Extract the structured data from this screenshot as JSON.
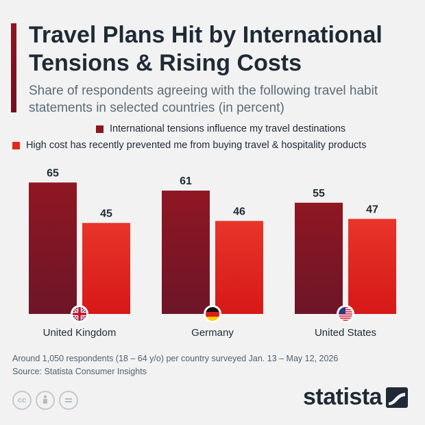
{
  "header": {
    "title": "Travel Plans Hit by International Tensions & Rising Costs",
    "subtitle": "Share of respondents agreeing with the following travel habit statements in selected countries (in percent)"
  },
  "chart_data": {
    "type": "bar",
    "title": "Travel Plans Hit by International Tensions & Rising Costs",
    "subtitle": "Share of respondents agreeing with the following travel habit statements in selected countries (in percent)",
    "categories": [
      "United Kingdom",
      "Germany",
      "United States"
    ],
    "category_flags": [
      "uk-flag-icon",
      "germany-flag-icon",
      "us-flag-icon"
    ],
    "series": [
      {
        "name": "International tensions influence my travel destinations",
        "values": [
          65,
          61,
          55
        ],
        "color": "#8b1723"
      },
      {
        "name": "High cost has recently prevented me from buying travel & hospitality products",
        "values": [
          45,
          46,
          47
        ],
        "color": "#e3281e"
      }
    ],
    "xlabel": "",
    "ylabel": "",
    "ylim": [
      0,
      70
    ],
    "grid": false,
    "legend_position": "top",
    "data_labels": true
  },
  "footer": {
    "note": "Around 1,050 respondents (18 – 64 y/o) per country surveyed Jan. 13 – May 12, 2026",
    "source": "Source: Statista Consumer Insights"
  },
  "license_icons": [
    "creative-commons-icon",
    "attribution-icon",
    "no-derivatives-icon"
  ],
  "brand": {
    "name": "statista"
  },
  "colors": {
    "background": "#f2f2f2",
    "title": "#1f2a36",
    "accent": "#8b1723",
    "accent2": "#e3281e"
  }
}
